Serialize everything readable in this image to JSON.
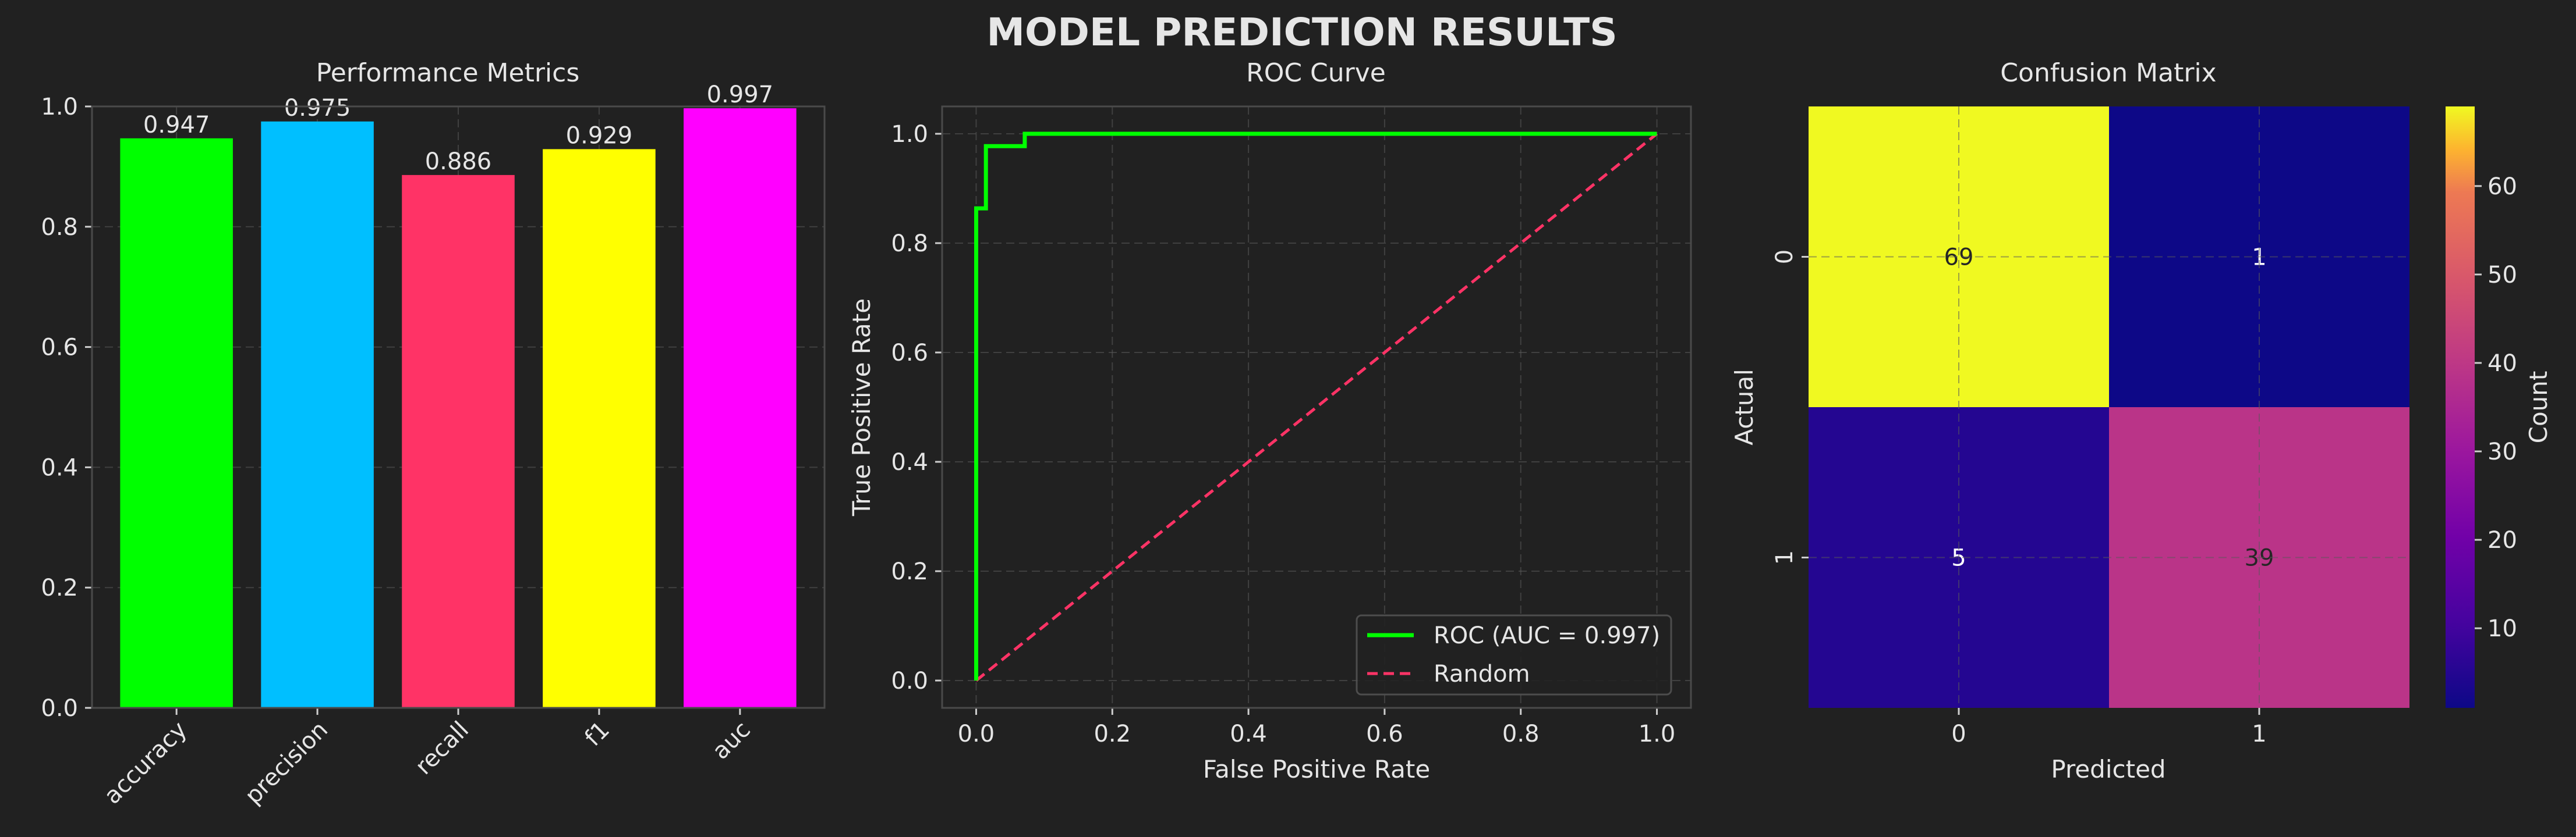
{
  "title": "MODEL PREDICTION RESULTS",
  "chart_data": [
    {
      "type": "bar",
      "title": "Performance Metrics",
      "categories": [
        "accuracy",
        "precision",
        "recall",
        "f1",
        "auc"
      ],
      "values": [
        0.947,
        0.975,
        0.886,
        0.929,
        0.997
      ],
      "value_labels": [
        "0.947",
        "0.975",
        "0.886",
        "0.929",
        "0.997"
      ],
      "colors": [
        "#00ff00",
        "#00bfff",
        "#ff3366",
        "#ffff00",
        "#ff00ff"
      ],
      "ylim": [
        0,
        1.0
      ],
      "yticks": [
        0.0,
        0.2,
        0.4,
        0.6,
        0.8,
        1.0
      ],
      "ytick_labels": [
        "0.0",
        "0.2",
        "0.4",
        "0.6",
        "0.8",
        "1.0"
      ],
      "grid": true
    },
    {
      "type": "line",
      "title": "ROC Curve",
      "xlabel": "False Positive Rate",
      "ylabel": "True Positive Rate",
      "xlim": [
        -0.05,
        1.05
      ],
      "ylim": [
        -0.05,
        1.05
      ],
      "xticks": [
        0.0,
        0.2,
        0.4,
        0.6,
        0.8,
        1.0
      ],
      "xtick_labels": [
        "0.0",
        "0.2",
        "0.4",
        "0.6",
        "0.8",
        "1.0"
      ],
      "yticks": [
        0.0,
        0.2,
        0.4,
        0.6,
        0.8,
        1.0
      ],
      "ytick_labels": [
        "0.0",
        "0.2",
        "0.4",
        "0.6",
        "0.8",
        "1.0"
      ],
      "grid": true,
      "legend_position": "lower-right",
      "series": [
        {
          "name": "ROC (AUC = 0.997)",
          "color": "#00ff00",
          "dash": "solid",
          "x": [
            0.0,
            0.0,
            0.0,
            0.0143,
            0.0143,
            0.0714,
            0.0714,
            1.0
          ],
          "y": [
            0.0,
            0.0256,
            0.8636,
            0.8636,
            0.9773,
            0.9773,
            1.0,
            1.0
          ]
        },
        {
          "name": "Random",
          "color": "#ff3366",
          "dash": "dashed",
          "x": [
            0.0,
            1.0
          ],
          "y": [
            0.0,
            1.0
          ]
        }
      ]
    },
    {
      "type": "heatmap",
      "title": "Confusion Matrix",
      "xlabel": "Predicted",
      "ylabel": "Actual",
      "x_categories": [
        "0",
        "1"
      ],
      "y_categories": [
        "0",
        "1"
      ],
      "values": [
        [
          69,
          1
        ],
        [
          5,
          39
        ]
      ],
      "value_labels": [
        [
          "69",
          "1"
        ],
        [
          "5",
          "39"
        ]
      ],
      "colormap": "plasma",
      "colorbar": {
        "label": "Count",
        "min": 1,
        "max": 69,
        "ticks": [
          10,
          20,
          30,
          40,
          50,
          60
        ],
        "tick_labels": [
          "10",
          "20",
          "30",
          "40",
          "50",
          "60"
        ]
      }
    }
  ]
}
